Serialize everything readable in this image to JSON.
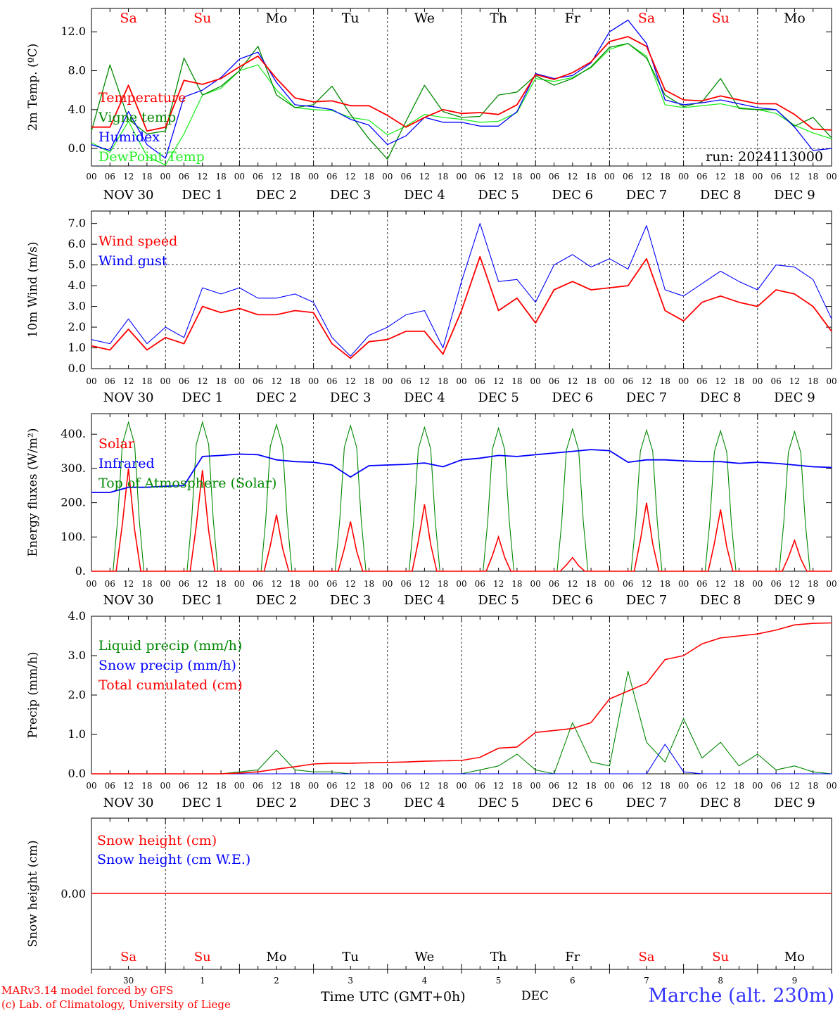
{
  "header": {
    "day_names": [
      "Sa",
      "Su",
      "Mo",
      "Tu",
      "We",
      "Th",
      "Fr",
      "Sa",
      "Su",
      "Mo"
    ],
    "weekend_color": "#ff0000",
    "weekday_color": "#000000"
  },
  "axes_common": {
    "hour_ticks": [
      "00",
      "06",
      "12",
      "18"
    ],
    "date_labels": [
      "NOV 30",
      "DEC  1",
      "DEC  2",
      "DEC  3",
      "DEC  4",
      "DEC  5",
      "DEC  6",
      "DEC  7",
      "DEC  8",
      "DEC  9"
    ],
    "bottom_day_numbers": [
      "30",
      "1",
      "2",
      "3",
      "4",
      "5",
      "6",
      "7",
      "8",
      "9"
    ],
    "days": 10
  },
  "footer": {
    "credit_line1": "MARv3.14 model forced by GFS",
    "credit_line2": "(c) Lab. of Climatology, University of Liege",
    "xaxis_label": "Time UTC (GMT+0h)",
    "month_label": "DEC",
    "station": "Marche (alt. 230m)"
  },
  "chart_data": [
    {
      "type": "line",
      "ylabel": "2m Temp. (ºC)",
      "ylim": [
        -1.8,
        14.4
      ],
      "yticks": [
        0,
        4,
        8,
        12
      ],
      "ytick_labels": [
        "0.0",
        "4.0",
        "8.0",
        "12.0"
      ],
      "hline": 0,
      "annotation": "run: 2024113000",
      "x": [
        0,
        6,
        12,
        18,
        24,
        30,
        36,
        42,
        48,
        54,
        60,
        66,
        72,
        78,
        84,
        90,
        96,
        102,
        108,
        114,
        120,
        126,
        132,
        138,
        144,
        150,
        156,
        162,
        168,
        174,
        180,
        186,
        192,
        198,
        204,
        210,
        216,
        222,
        228,
        234,
        240
      ],
      "series": [
        {
          "name": "Temperature",
          "color": "#ff0000",
          "values": [
            2.2,
            2.2,
            6.5,
            1.8,
            2.2,
            7,
            6.6,
            7.2,
            8.4,
            9.5,
            7.2,
            5.2,
            4.8,
            4.9,
            4.4,
            4.4,
            3.4,
            2.2,
            3.2,
            4.0,
            3.6,
            3.7,
            3.5,
            4.5,
            7.6,
            7.1,
            7.8,
            8.9,
            11.0,
            11.5,
            10.5,
            6.0,
            5.0,
            4.9,
            5.4,
            5.0,
            4.6,
            4.6,
            3.5,
            2.0,
            1.9
          ]
        },
        {
          "name": "Vigne temp",
          "color": "#008800",
          "values": [
            1.8,
            8.6,
            3.0,
            1.5,
            1.8,
            9.3,
            5.5,
            6.4,
            8.0,
            10.5,
            5.5,
            4.2,
            4.5,
            6.4,
            3.5,
            1.0,
            -1.1,
            2.8,
            6.5,
            3.8,
            3.2,
            3.3,
            5.5,
            5.8,
            7.5,
            6.5,
            7.2,
            8.4,
            10.4,
            10.8,
            9.3,
            5.5,
            4.3,
            4.8,
            7.2,
            4.1,
            4.0,
            4.0,
            2.3,
            3.2,
            1.1
          ]
        },
        {
          "name": "Humidex",
          "color": "#0000ff",
          "values": [
            0.4,
            -0.2,
            3.8,
            0.4,
            -1.0,
            5.3,
            6.0,
            7.3,
            9.2,
            9.9,
            6.8,
            4.5,
            4.3,
            4.0,
            3.0,
            2.4,
            0.4,
            1.3,
            3.2,
            2.7,
            2.7,
            2.3,
            2.3,
            3.8,
            7.7,
            7.2,
            7.5,
            8.8,
            12.0,
            13.2,
            10.8,
            5.0,
            4.5,
            4.7,
            5.0,
            4.6,
            4.2,
            4.0,
            2.2,
            -0.2,
            0.0
          ]
        },
        {
          "name": "DewPoint Temp",
          "color": "#22ee22",
          "values": [
            0.6,
            -0.4,
            2.8,
            -0.8,
            -1.7,
            1.5,
            5.5,
            6.2,
            8.0,
            8.6,
            6.0,
            4.2,
            4.0,
            3.9,
            3.2,
            2.9,
            1.4,
            2.3,
            3.5,
            3.2,
            3.0,
            2.7,
            2.8,
            3.7,
            7.2,
            6.9,
            7.3,
            8.3,
            10.2,
            10.8,
            9.5,
            4.5,
            4.2,
            4.4,
            4.6,
            4.2,
            4.0,
            3.6,
            2.4,
            1.6,
            1.0
          ]
        }
      ]
    },
    {
      "type": "line",
      "ylabel": "10m Wind (m/s)",
      "ylim": [
        0,
        7.6
      ],
      "yticks": [
        0,
        1,
        2,
        3,
        4,
        5,
        6,
        7
      ],
      "ytick_labels": [
        "0.0",
        "1.0",
        "2.0",
        "3.0",
        "4.0",
        "5.0",
        "6.0",
        "7.0"
      ],
      "hline": 5,
      "x": [
        0,
        6,
        12,
        18,
        24,
        30,
        36,
        42,
        48,
        54,
        60,
        66,
        72,
        78,
        84,
        90,
        96,
        102,
        108,
        114,
        120,
        126,
        132,
        138,
        144,
        150,
        156,
        162,
        168,
        174,
        180,
        186,
        192,
        198,
        204,
        210,
        216,
        222,
        228,
        234,
        240
      ],
      "series": [
        {
          "name": "Wind speed",
          "color": "#ff0000",
          "values": [
            1.1,
            0.9,
            1.9,
            0.9,
            1.5,
            1.2,
            3.0,
            2.7,
            2.9,
            2.6,
            2.6,
            2.8,
            2.7,
            1.2,
            0.5,
            1.3,
            1.4,
            1.8,
            1.8,
            0.7,
            2.8,
            5.4,
            2.8,
            3.4,
            2.2,
            3.8,
            4.2,
            3.8,
            3.9,
            4.0,
            5.3,
            2.8,
            2.3,
            3.2,
            3.5,
            3.2,
            3.0,
            3.8,
            3.6,
            3.0,
            1.8
          ]
        },
        {
          "name": "Wind gust",
          "color": "#0000ff",
          "values": [
            1.4,
            1.2,
            2.4,
            1.2,
            2.0,
            1.5,
            3.9,
            3.6,
            3.9,
            3.4,
            3.4,
            3.6,
            3.2,
            1.5,
            0.6,
            1.6,
            2.0,
            2.6,
            2.8,
            1.0,
            4.2,
            7.0,
            4.2,
            4.3,
            3.2,
            5.0,
            5.5,
            4.9,
            5.3,
            4.8,
            6.9,
            3.8,
            3.5,
            4.1,
            4.7,
            4.2,
            3.8,
            5.0,
            4.9,
            4.3,
            2.4
          ]
        }
      ]
    },
    {
      "type": "line",
      "ylabel": "Energy fluxes (W/m²)",
      "ylim": [
        0,
        460
      ],
      "yticks": [
        0,
        100,
        200,
        300,
        400
      ],
      "ytick_labels": [
        "0.",
        "100.",
        "200.",
        "300.",
        "400."
      ],
      "solar_peaks": [
        300,
        295,
        165,
        145,
        195,
        100,
        40,
        200,
        180,
        90
      ],
      "toa_peaks": [
        435,
        435,
        428,
        425,
        420,
        418,
        415,
        412,
        410,
        408
      ],
      "series": [
        {
          "name": "Solar",
          "color": "#ff0000"
        },
        {
          "name": "Infrared",
          "color": "#0000ff",
          "values": [
            230,
            230,
            245,
            245,
            248,
            250,
            335,
            338,
            342,
            340,
            325,
            320,
            318,
            310,
            275,
            308,
            310,
            312,
            316,
            305,
            325,
            330,
            338,
            335,
            340,
            345,
            350,
            355,
            352,
            318,
            325,
            325,
            322,
            320,
            320,
            315,
            318,
            315,
            310,
            305,
            303
          ]
        },
        {
          "name": "Top of Atmosphere (Solar)",
          "color": "#008800"
        }
      ],
      "x": [
        0,
        6,
        12,
        18,
        24,
        30,
        36,
        42,
        48,
        54,
        60,
        66,
        72,
        78,
        84,
        90,
        96,
        102,
        108,
        114,
        120,
        126,
        132,
        138,
        144,
        150,
        156,
        162,
        168,
        174,
        180,
        186,
        192,
        198,
        204,
        210,
        216,
        222,
        228,
        234,
        240
      ]
    },
    {
      "type": "line",
      "ylabel": "Precip (mm/h)",
      "ylim": [
        0,
        4.0
      ],
      "yticks": [
        0,
        1,
        2,
        3,
        4
      ],
      "ytick_labels": [
        "0.0",
        "1.0",
        "2.0",
        "3.0",
        "4.0"
      ],
      "x": [
        0,
        6,
        12,
        18,
        24,
        30,
        36,
        42,
        48,
        54,
        60,
        66,
        72,
        78,
        84,
        90,
        96,
        102,
        108,
        114,
        120,
        126,
        132,
        138,
        144,
        150,
        156,
        162,
        168,
        174,
        180,
        186,
        192,
        198,
        204,
        210,
        216,
        222,
        228,
        234,
        240
      ],
      "series": [
        {
          "name": "Liquid precip (mm/h)",
          "color": "#008800",
          "values": [
            0,
            0,
            0,
            0,
            0,
            0,
            0,
            0,
            0.05,
            0.1,
            0.6,
            0.1,
            0.05,
            0.05,
            0,
            0,
            0,
            0,
            0,
            0,
            0,
            0.1,
            0.2,
            0.5,
            0.1,
            0,
            1.3,
            0.3,
            0.2,
            2.6,
            0.8,
            0.3,
            1.4,
            0.4,
            0.8,
            0.2,
            0.5,
            0.1,
            0.2,
            0.05,
            0
          ]
        },
        {
          "name": "Snow precip (mm/h)",
          "color": "#0000ff",
          "values": [
            0,
            0,
            0,
            0,
            0,
            0,
            0,
            0,
            0,
            0,
            0,
            0,
            0,
            0,
            0,
            0,
            0,
            0,
            0,
            0,
            0,
            0,
            0,
            0,
            0,
            0,
            0,
            0,
            0,
            0,
            0,
            0.75,
            0.05,
            0,
            0,
            0,
            0,
            0,
            0,
            0,
            0
          ]
        },
        {
          "name": "Total cumulated (cm)",
          "color": "#ff0000",
          "values": [
            0,
            0,
            0,
            0,
            0,
            0,
            0,
            0,
            0.02,
            0.05,
            0.12,
            0.18,
            0.25,
            0.27,
            0.27,
            0.28,
            0.29,
            0.3,
            0.32,
            0.33,
            0.34,
            0.42,
            0.65,
            0.68,
            1.05,
            1.1,
            1.15,
            1.3,
            1.9,
            2.1,
            2.3,
            2.9,
            3.0,
            3.3,
            3.45,
            3.5,
            3.55,
            3.65,
            3.78,
            3.82,
            3.83
          ]
        }
      ]
    },
    {
      "type": "line",
      "ylabel": "Snow height (cm)",
      "ytick_labels": [
        "0.00"
      ],
      "series": [
        {
          "name": "Snow height (cm)",
          "color": "#ff0000",
          "values": [
            0,
            0
          ]
        },
        {
          "name": "Snow height (cm W.E.)",
          "color": "#0000ff",
          "values": [
            0,
            0
          ]
        }
      ]
    }
  ]
}
